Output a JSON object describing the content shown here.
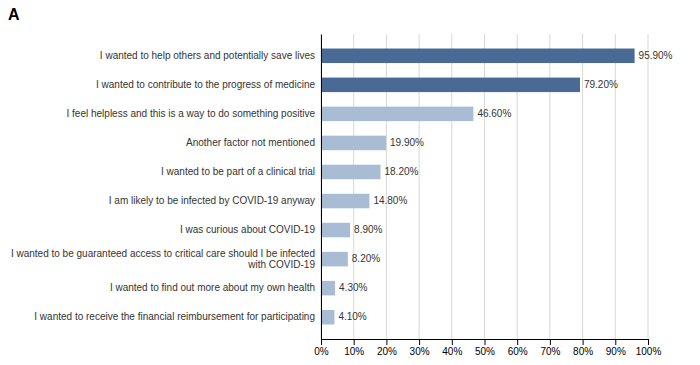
{
  "chart_data": {
    "type": "bar",
    "orientation": "horizontal",
    "title": "A",
    "categories": [
      "I wanted to receive the financial reimbursement for participating",
      "I wanted to find out more about my own health",
      "I wanted to be guaranteed access to critical care should I be infected\nwith COVID-19",
      "I was curious about COVID-19",
      "I am likely to be infected by COVID-19 anyway",
      "I wanted to be part of a clinical trial",
      "Another factor not mentioned",
      "I feel helpless and this is a way to do something positive",
      "I wanted to contribute to the progress of medicine",
      "I wanted to help others and potentially save lives"
    ],
    "values": [
      4.1,
      4.3,
      8.2,
      8.9,
      14.8,
      18.2,
      19.9,
      46.6,
      79.2,
      95.9
    ],
    "value_labels": [
      "4.10%",
      "4.30%",
      "8.20%",
      "8.90%",
      "14.80%",
      "18.20%",
      "19.90%",
      "46.60%",
      "79.20%",
      "95.90%"
    ],
    "data_labels": true,
    "colors": [
      "#a8bcd4",
      "#a8bcd4",
      "#a8bcd4",
      "#a8bcd4",
      "#a8bcd4",
      "#a8bcd4",
      "#a8bcd4",
      "#a8bcd4",
      "#4a6a96",
      "#4a6a96"
    ],
    "xlim": [
      0,
      100
    ],
    "xticks": [
      {
        "value": 0,
        "label": "0%"
      },
      {
        "value": 10,
        "label": "10%"
      },
      {
        "value": 20,
        "label": "20%"
      },
      {
        "value": 30,
        "label": "30%"
      },
      {
        "value": 40,
        "label": "40%"
      },
      {
        "value": 50,
        "label": "50%"
      },
      {
        "value": 60,
        "label": "60%"
      },
      {
        "value": 70,
        "label": "70%"
      },
      {
        "value": 80,
        "label": "80%"
      },
      {
        "value": 90,
        "label": "90%"
      },
      {
        "value": 100,
        "label": "100%"
      }
    ],
    "grid": true
  }
}
